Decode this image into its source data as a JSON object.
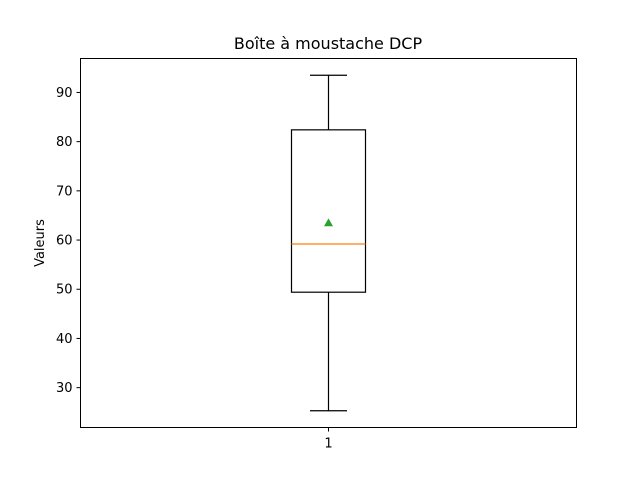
{
  "chart_data": {
    "type": "box",
    "title": "Boîte à moustache DCP",
    "xlabel": "",
    "ylabel": "Valeurs",
    "categories": [
      "1"
    ],
    "y_ticks": [
      30,
      40,
      50,
      60,
      70,
      80,
      90
    ],
    "ylim": [
      21.9,
      96.9
    ],
    "boxes": [
      {
        "category": "1",
        "whisker_low": 25.3,
        "q1": 49.4,
        "median": 59.2,
        "q3": 82.4,
        "whisker_high": 93.5,
        "mean": 63.5
      }
    ],
    "colors": {
      "box": "#000000",
      "median": "#ff7f0e",
      "mean": "#2ca02c"
    },
    "grid": false
  }
}
